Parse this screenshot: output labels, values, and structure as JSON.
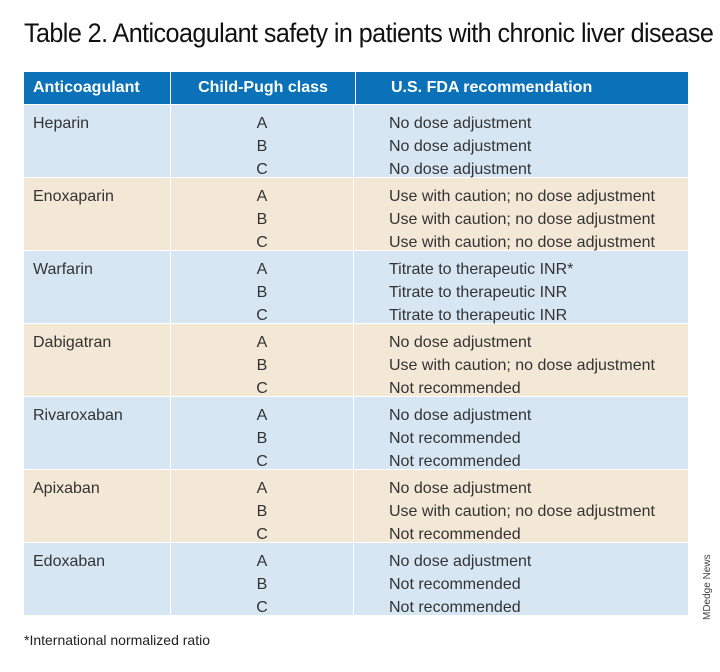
{
  "title": "Table 2. Anticoagulant safety in patients with chronic liver disease",
  "headers": [
    "Anticoagulant",
    "Child-Pugh class",
    "U.S. FDA recommendation"
  ],
  "rows": [
    {
      "drug": "Heparin",
      "classes": [
        "A",
        "B",
        "C"
      ],
      "recs": [
        "No dose adjustment",
        "No dose adjustment",
        "No dose adjustment"
      ]
    },
    {
      "drug": "Enoxaparin",
      "classes": [
        "A",
        "B",
        "C"
      ],
      "recs": [
        "Use with caution; no dose adjustment",
        "Use with caution; no dose adjustment",
        "Use with caution; no dose adjustment"
      ]
    },
    {
      "drug": "Warfarin",
      "classes": [
        "A",
        "B",
        "C"
      ],
      "recs": [
        "Titrate to therapeutic INR*",
        "Titrate to therapeutic INR",
        "Titrate to therapeutic INR"
      ]
    },
    {
      "drug": "Dabigatran",
      "classes": [
        "A",
        "B",
        "C"
      ],
      "recs": [
        "No dose adjustment",
        "Use with caution; no dose adjustment",
        "Not recommended"
      ]
    },
    {
      "drug": "Rivaroxaban",
      "classes": [
        "A",
        "B",
        "C"
      ],
      "recs": [
        "No dose adjustment",
        "Not recommended",
        "Not recommended"
      ]
    },
    {
      "drug": "Apixaban",
      "classes": [
        "A",
        "B",
        "C"
      ],
      "recs": [
        "No dose adjustment",
        "Use with caution; no dose adjustment",
        "Not recommended"
      ]
    },
    {
      "drug": "Edoxaban",
      "classes": [
        "A",
        "B",
        "C"
      ],
      "recs": [
        "No dose adjustment",
        "Not recommended",
        "Not recommended"
      ]
    }
  ],
  "footnote": "*International normalized ratio",
  "credit": "MDedge News",
  "colors": {
    "header": "#0b72b9",
    "row_blue": "#d7e6f3",
    "row_tan": "#f3e8d6"
  }
}
